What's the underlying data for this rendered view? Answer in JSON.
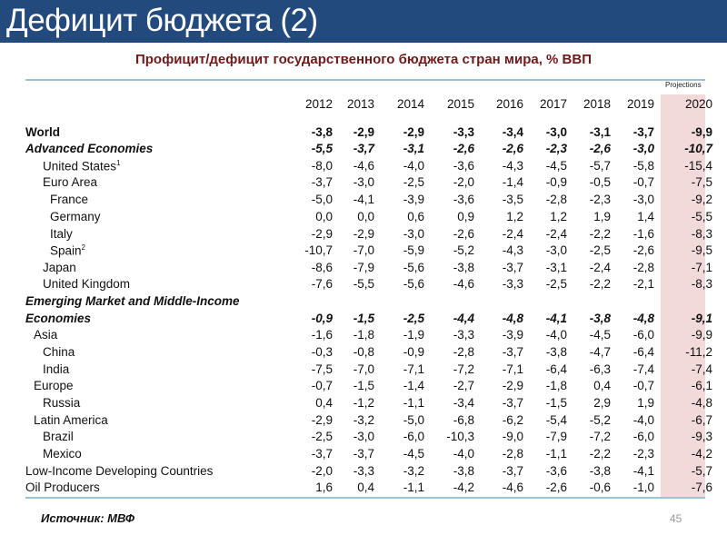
{
  "slide_title": "Дефицит бюджета (2)",
  "subtitle": "Профицит/дефицит государственного бюджета стран мира, % ВВП",
  "projections_label": "Projections",
  "years": [
    "2012",
    "2013",
    "2014",
    "2015",
    "2016",
    "2017",
    "2018",
    "2019",
    "2020"
  ],
  "rows": [
    {
      "label": "World",
      "style": "b",
      "indent": 0,
      "values": [
        "-3,8",
        "-2,9",
        "-2,9",
        "-3,3",
        "-3,4",
        "-3,0",
        "-3,1",
        "-3,7",
        "-9,9"
      ]
    },
    {
      "label": "Advanced Economies",
      "style": "bi",
      "indent": 0,
      "values": [
        "-5,5",
        "-3,7",
        "-3,1",
        "-2,6",
        "-2,6",
        "-2,3",
        "-2,6",
        "-3,0",
        "-10,7"
      ]
    },
    {
      "label": "United States",
      "sup": "1",
      "style": "",
      "indent": 2,
      "values": [
        "-8,0",
        "-4,6",
        "-4,0",
        "-3,6",
        "-4,3",
        "-4,5",
        "-5,7",
        "-5,8",
        "-15,4"
      ]
    },
    {
      "label": "Euro Area",
      "style": "",
      "indent": 2,
      "values": [
        "-3,7",
        "-3,0",
        "-2,5",
        "-2,0",
        "-1,4",
        "-0,9",
        "-0,5",
        "-0,7",
        "-7,5"
      ]
    },
    {
      "label": "France",
      "style": "",
      "indent": 3,
      "values": [
        "-5,0",
        "-4,1",
        "-3,9",
        "-3,6",
        "-3,5",
        "-2,8",
        "-2,3",
        "-3,0",
        "-9,2"
      ]
    },
    {
      "label": "Germany",
      "style": "",
      "indent": 3,
      "values": [
        "0,0",
        "0,0",
        "0,6",
        "0,9",
        "1,2",
        "1,2",
        "1,9",
        "1,4",
        "-5,5"
      ]
    },
    {
      "label": "Italy",
      "style": "",
      "indent": 3,
      "values": [
        "-2,9",
        "-2,9",
        "-3,0",
        "-2,6",
        "-2,4",
        "-2,4",
        "-2,2",
        "-1,6",
        "-8,3"
      ]
    },
    {
      "label": "Spain",
      "sup": "2",
      "style": "",
      "indent": 3,
      "values": [
        "-10,7",
        "-7,0",
        "-5,9",
        "-5,2",
        "-4,3",
        "-3,0",
        "-2,5",
        "-2,6",
        "-9,5"
      ]
    },
    {
      "label": "Japan",
      "style": "",
      "indent": 2,
      "values": [
        "-8,6",
        "-7,9",
        "-5,6",
        "-3,8",
        "-3,7",
        "-3,1",
        "-2,4",
        "-2,8",
        "-7,1"
      ]
    },
    {
      "label": "United Kingdom",
      "style": "",
      "indent": 2,
      "values": [
        "-7,6",
        "-5,5",
        "-5,6",
        "-4,6",
        "-3,3",
        "-2,5",
        "-2,2",
        "-2,1",
        "-8,3"
      ]
    },
    {
      "label": "Emerging Market and Middle-Income",
      "style": "bi",
      "indent": 0,
      "values": []
    },
    {
      "label": "Economies",
      "style": "bi",
      "indent": 0,
      "values": [
        "-0,9",
        "-1,5",
        "-2,5",
        "-4,4",
        "-4,8",
        "-4,1",
        "-3,8",
        "-4,8",
        "-9,1"
      ]
    },
    {
      "label": "Asia",
      "style": "",
      "indent": 1,
      "values": [
        "-1,6",
        "-1,8",
        "-1,9",
        "-3,3",
        "-3,9",
        "-4,0",
        "-4,5",
        "-6,0",
        "-9,9"
      ]
    },
    {
      "label": "China",
      "style": "",
      "indent": 2,
      "values": [
        "-0,3",
        "-0,8",
        "-0,9",
        "-2,8",
        "-3,7",
        "-3,8",
        "-4,7",
        "-6,4",
        "-11,2"
      ]
    },
    {
      "label": "India",
      "style": "",
      "indent": 2,
      "values": [
        "-7,5",
        "-7,0",
        "-7,1",
        "-7,2",
        "-7,1",
        "-6,4",
        "-6,3",
        "-7,4",
        "-7,4"
      ]
    },
    {
      "label": "Europe",
      "style": "",
      "indent": 1,
      "values": [
        "-0,7",
        "-1,5",
        "-1,4",
        "-2,7",
        "-2,9",
        "-1,8",
        "0,4",
        "-0,7",
        "-6,1"
      ]
    },
    {
      "label": "Russia",
      "style": "",
      "indent": 2,
      "values": [
        "0,4",
        "-1,2",
        "-1,1",
        "-3,4",
        "-3,7",
        "-1,5",
        "2,9",
        "1,9",
        "-4,8"
      ]
    },
    {
      "label": "Latin America",
      "style": "",
      "indent": 1,
      "values": [
        "-2,9",
        "-3,2",
        "-5,0",
        "-6,8",
        "-6,2",
        "-5,4",
        "-5,2",
        "-4,0",
        "-6,7"
      ]
    },
    {
      "label": "Brazil",
      "style": "",
      "indent": 2,
      "values": [
        "-2,5",
        "-3,0",
        "-6,0",
        "-10,3",
        "-9,0",
        "-7,9",
        "-7,2",
        "-6,0",
        "-9,3"
      ]
    },
    {
      "label": "Mexico",
      "style": "",
      "indent": 2,
      "values": [
        "-3,7",
        "-3,7",
        "-4,5",
        "-4,0",
        "-2,8",
        "-1,1",
        "-2,2",
        "-2,3",
        "-4,2"
      ]
    },
    {
      "label": "Low-Income Developing Countries",
      "style": "",
      "indent": 0,
      "values": [
        "-2,0",
        "-3,3",
        "-3,2",
        "-3,8",
        "-3,7",
        "-3,6",
        "-3,8",
        "-4,1",
        "-5,7"
      ]
    },
    {
      "label": "Oil Producers",
      "style": "",
      "indent": 0,
      "values": [
        "1,6",
        "0,4",
        "-1,1",
        "-4,2",
        "-4,6",
        "-2,6",
        "-0,6",
        "-1,0",
        "-7,6"
      ]
    }
  ],
  "source": "Источник: МВФ",
  "page_number": "45"
}
